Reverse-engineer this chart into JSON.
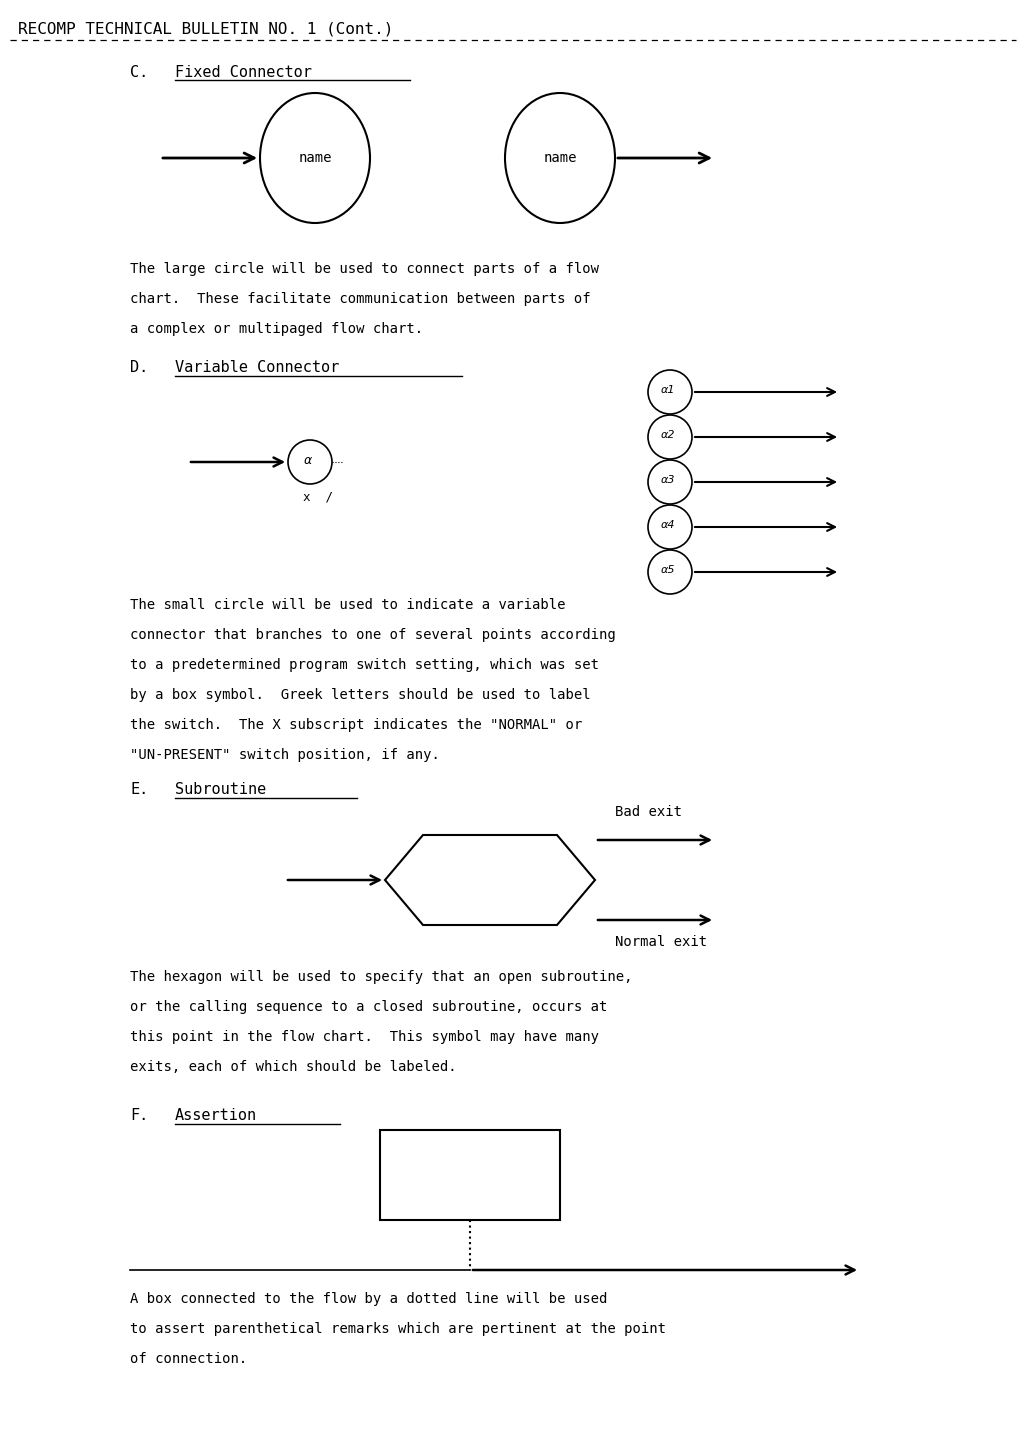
{
  "title": "RECOMP TECHNICAL BULLETIN NO. 1 (Cont.)",
  "bg_color": "#ffffff",
  "sections": {
    "C": {
      "label": "C.",
      "heading": "Fixed Connector",
      "desc": [
        "The large circle will be used to connect parts of a flow",
        "chart.  These facilitate communication between parts of",
        "a complex or multipaged flow chart."
      ]
    },
    "D": {
      "label": "D.",
      "heading": "Variable Connector",
      "desc": [
        "The small circle will be used to indicate a variable",
        "connector that branches to one of several points according",
        "to a predetermined program switch setting, which was set",
        "by a box symbol.  Greek letters should be used to label",
        "the switch.  The X subscript indicates the \"NORMAL\" or",
        "\"UN-PRESENT\" switch position, if any."
      ]
    },
    "E": {
      "label": "E.",
      "heading": "Subroutine",
      "desc": [
        "The hexagon will be used to specify that an open subroutine,",
        "or the calling sequence to a closed subroutine, occurs at",
        "this point in the flow chart.  This symbol may have many",
        "exits, each of which should be labeled."
      ]
    },
    "F": {
      "label": "F.",
      "heading": "Assertion",
      "desc": [
        "A box connected to the flow by a dotted line will be used",
        "to assert parenthetical remarks which are pertinent at the point",
        "of connection."
      ]
    }
  }
}
